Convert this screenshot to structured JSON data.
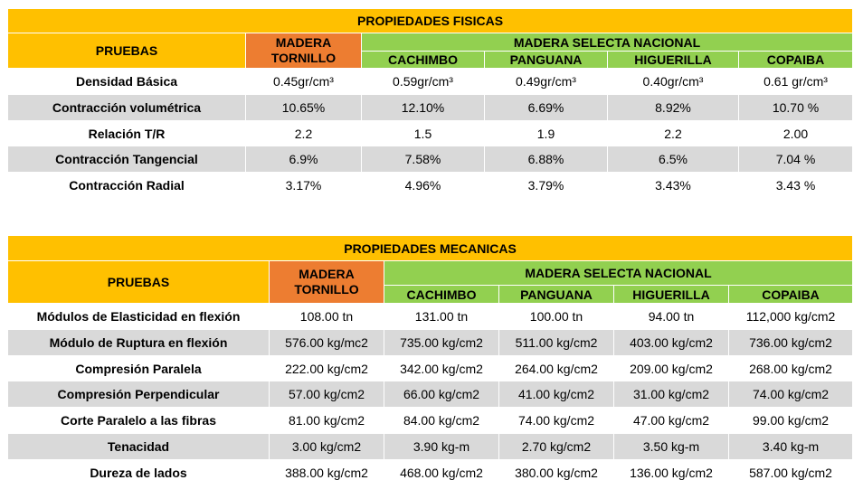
{
  "tables": [
    {
      "title": "PROPIEDADES FISICAS",
      "pruebas": "PRUEBAS",
      "tornillo": "MADERA TORNILLO",
      "group": "MADERA SELECTA NACIONAL",
      "species": [
        "CACHIMBO",
        "PANGUANA",
        "HIGUERILLA",
        "COPAIBA"
      ],
      "rows": [
        {
          "label": "Densidad Básica",
          "values": [
            "0.45gr/cm³",
            "0.59gr/cm³",
            "0.49gr/cm³",
            "0.40gr/cm³",
            "0.61 gr/cm³"
          ]
        },
        {
          "label": "Contracción volumétrica",
          "values": [
            "10.65%",
            "12.10%",
            "6.69%",
            "8.92%",
            "10.70 %"
          ]
        },
        {
          "label": "Relación T/R",
          "values": [
            "2.2",
            "1.5",
            "1.9",
            "2.2",
            "2.00"
          ]
        },
        {
          "label": "Contracción Tangencial",
          "values": [
            "6.9%",
            "7.58%",
            "6.88%",
            "6.5%",
            "7.04 %"
          ]
        },
        {
          "label": "Contracción Radial",
          "values": [
            "3.17%",
            "4.96%",
            "3.79%",
            "3.43%",
            "3.43 %"
          ]
        }
      ]
    },
    {
      "title": "PROPIEDADES MECANICAS",
      "pruebas": "PRUEBAS",
      "tornillo": "MADERA TORNILLO",
      "group": "MADERA SELECTA NACIONAL",
      "species": [
        "CACHIMBO",
        "PANGUANA",
        "HIGUERILLA",
        "COPAIBA"
      ],
      "rows": [
        {
          "label": "Módulos de Elasticidad en flexión",
          "values": [
            "108.00 tn",
            "131.00 tn",
            "100.00 tn",
            "94.00 tn",
            "112,000 kg/cm2"
          ]
        },
        {
          "label": "Módulo de Ruptura en flexión",
          "values": [
            "576.00 kg/mc2",
            "735.00 kg/cm2",
            "511.00 kg/cm2",
            "403.00 kg/cm2",
            "736.00 kg/cm2"
          ]
        },
        {
          "label": "Compresión Paralela",
          "values": [
            "222.00 kg/cm2",
            "342.00 kg/cm2",
            "264.00 kg/cm2",
            "209.00 kg/cm2",
            "268.00 kg/cm2"
          ]
        },
        {
          "label": "Compresión Perpendicular",
          "values": [
            "57.00 kg/cm2",
            "66.00 kg/cm2",
            "41.00 kg/cm2",
            "31.00 kg/cm2",
            "74.00 kg/cm2"
          ]
        },
        {
          "label": "Corte Paralelo a las fibras",
          "values": [
            "81.00 kg/cm2",
            "84.00 kg/cm2",
            "74.00 kg/cm2",
            "47.00 kg/cm2",
            "99.00 kg/cm2"
          ]
        },
        {
          "label": "Tenacidad",
          "values": [
            "3.00 kg/cm2",
            "3.90 kg-m",
            "2.70 kg/cm2",
            "3.50 kg-m",
            "3.40 kg-m"
          ]
        },
        {
          "label": "Dureza de lados",
          "values": [
            "388.00 kg/cm2",
            "468.00 kg/cm2",
            "380.00 kg/cm2",
            "136.00 kg/cm2",
            "587.00 kg/cm2"
          ]
        }
      ]
    }
  ],
  "colors": {
    "title_bg": "#ffc000",
    "tornillo_bg": "#ed7d31",
    "group_bg": "#92d050",
    "stripe_bg": "#d9d9d9"
  }
}
